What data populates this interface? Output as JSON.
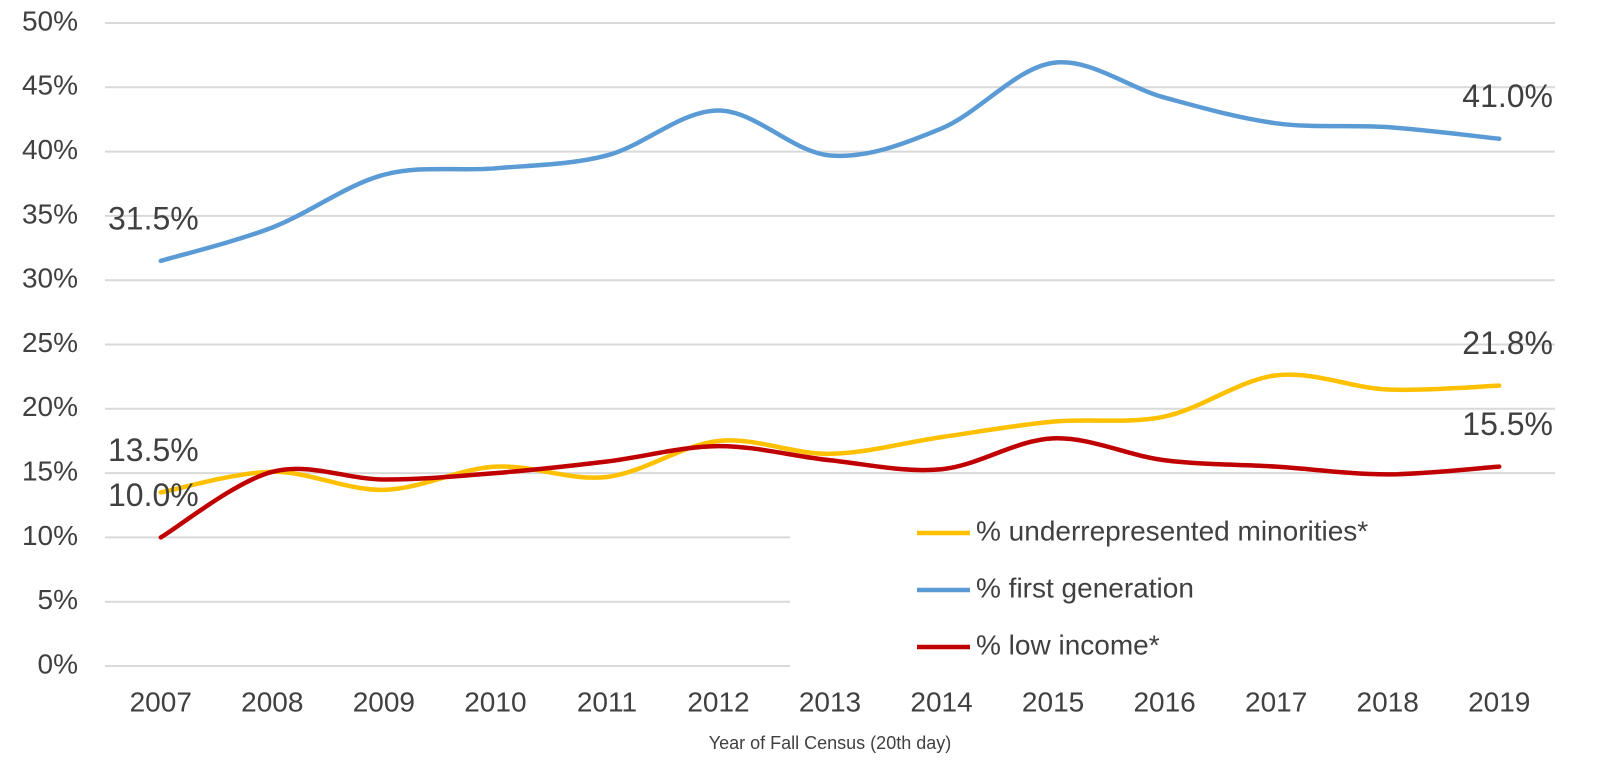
{
  "chart_data": {
    "type": "line",
    "x_label": "Year of Fall Census (20th day)",
    "categories": [
      "2007",
      "2008",
      "2009",
      "2010",
      "2011",
      "2012",
      "2013",
      "2014",
      "2015",
      "2016",
      "2017",
      "2018",
      "2019"
    ],
    "ylim": [
      0,
      50
    ],
    "yticks": [
      {
        "value": 0,
        "label": "0%"
      },
      {
        "value": 5,
        "label": "5%"
      },
      {
        "value": 10,
        "label": "10%"
      },
      {
        "value": 15,
        "label": "15%"
      },
      {
        "value": 20,
        "label": "20%"
      },
      {
        "value": 25,
        "label": "25%"
      },
      {
        "value": 30,
        "label": "30%"
      },
      {
        "value": 35,
        "label": "35%"
      },
      {
        "value": 40,
        "label": "40%"
      },
      {
        "value": 45,
        "label": "45%"
      },
      {
        "value": 50,
        "label": "50%"
      }
    ],
    "grid": true,
    "legend": "lower right",
    "series": [
      {
        "name": "% underrepresented minorities*",
        "color": "#ffc000",
        "values": [
          13.5,
          15.1,
          13.7,
          15.5,
          14.7,
          17.5,
          16.5,
          17.8,
          19.0,
          19.4,
          22.6,
          21.5,
          21.8
        ],
        "value_labels": [
          "13.5%",
          null,
          null,
          null,
          null,
          null,
          null,
          null,
          null,
          null,
          null,
          null,
          "21.8%"
        ]
      },
      {
        "name": "% first generation",
        "color": "#5b9bd5",
        "values": [
          31.5,
          34.1,
          38.2,
          38.7,
          39.7,
          43.2,
          39.7,
          41.8,
          46.9,
          44.2,
          42.2,
          41.9,
          41.0
        ],
        "value_labels": [
          "31.5%",
          null,
          null,
          null,
          null,
          null,
          null,
          null,
          null,
          null,
          null,
          null,
          "41.0%"
        ]
      },
      {
        "name": "% low income*",
        "color": "#c00000",
        "values": [
          10.0,
          15.1,
          14.5,
          15.0,
          15.9,
          17.1,
          16.0,
          15.3,
          17.7,
          16.0,
          15.5,
          14.9,
          15.5
        ],
        "value_labels": [
          "10.0%",
          null,
          null,
          null,
          null,
          null,
          null,
          null,
          null,
          null,
          null,
          null,
          "15.5%"
        ]
      }
    ]
  }
}
